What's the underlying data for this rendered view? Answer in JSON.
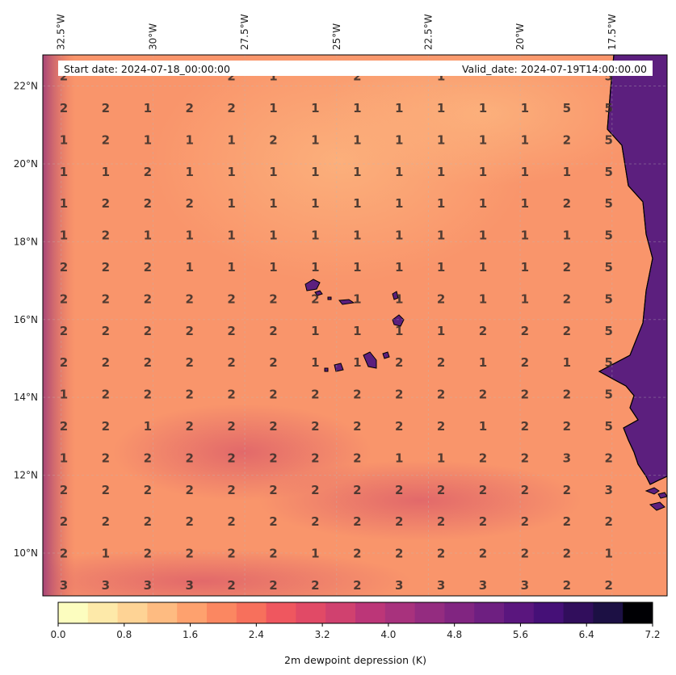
{
  "map": {
    "start_date_text": "Start date: 2024-07-18_00:00:00",
    "valid_date_text": "Valid_date: 2024-07-19T14:00:00.00",
    "lon_range": [
      -33.0,
      -16.0
    ],
    "lat_range": [
      8.9,
      22.8
    ],
    "lon_ticks": [
      {
        "value": -32.5,
        "label": "32.5°W"
      },
      {
        "value": -30.0,
        "label": "30°W"
      },
      {
        "value": -27.5,
        "label": "27.5°W"
      },
      {
        "value": -25.0,
        "label": "25°W"
      },
      {
        "value": -22.5,
        "label": "22.5°W"
      },
      {
        "value": -20.0,
        "label": "20°W"
      },
      {
        "value": -17.5,
        "label": "17.5°W"
      }
    ],
    "lat_ticks": [
      {
        "value": 22,
        "label": "22°N"
      },
      {
        "value": 20,
        "label": "20°N"
      },
      {
        "value": 18,
        "label": "18°N"
      },
      {
        "value": 16,
        "label": "16°N"
      },
      {
        "value": 14,
        "label": "14°N"
      },
      {
        "value": 12,
        "label": "12°N"
      },
      {
        "value": 10,
        "label": "10°N"
      }
    ],
    "grid_labels": [
      [
        "2",
        "2",
        "1",
        "2",
        "2",
        "1",
        "1",
        "1",
        "1",
        "1",
        "1",
        "1",
        "5",
        "5"
      ],
      [
        "1",
        "2",
        "1",
        "1",
        "1",
        "2",
        "1",
        "1",
        "1",
        "1",
        "1",
        "1",
        "2",
        "5"
      ],
      [
        "1",
        "1",
        "2",
        "1",
        "1",
        "1",
        "1",
        "1",
        "1",
        "1",
        "1",
        "1",
        "1",
        "5"
      ],
      [
        "1",
        "2",
        "2",
        "2",
        "1",
        "1",
        "1",
        "1",
        "1",
        "1",
        "1",
        "1",
        "2",
        "5"
      ],
      [
        "1",
        "2",
        "1",
        "1",
        "1",
        "1",
        "1",
        "1",
        "1",
        "1",
        "1",
        "1",
        "1",
        "5"
      ],
      [
        "2",
        "2",
        "2",
        "1",
        "1",
        "1",
        "1",
        "1",
        "1",
        "1",
        "1",
        "1",
        "2",
        "5"
      ],
      [
        "2",
        "2",
        "2",
        "2",
        "2",
        "2",
        "2",
        "1",
        "1",
        "2",
        "1",
        "1",
        "2",
        "5"
      ],
      [
        "2",
        "2",
        "2",
        "2",
        "2",
        "2",
        "1",
        "1",
        "1",
        "1",
        "2",
        "2",
        "2",
        "5"
      ],
      [
        "2",
        "2",
        "2",
        "2",
        "2",
        "2",
        "1",
        "1",
        "2",
        "2",
        "1",
        "2",
        "1",
        "5"
      ],
      [
        "1",
        "2",
        "2",
        "2",
        "2",
        "2",
        "2",
        "2",
        "2",
        "2",
        "2",
        "2",
        "2",
        "5"
      ],
      [
        "2",
        "2",
        "1",
        "2",
        "2",
        "2",
        "2",
        "2",
        "2",
        "2",
        "1",
        "2",
        "2",
        "5"
      ],
      [
        "1",
        "2",
        "2",
        "2",
        "2",
        "2",
        "2",
        "2",
        "1",
        "1",
        "2",
        "2",
        "3",
        "2"
      ],
      [
        "2",
        "2",
        "2",
        "2",
        "2",
        "2",
        "2",
        "2",
        "2",
        "2",
        "2",
        "2",
        "2",
        "3"
      ],
      [
        "2",
        "2",
        "2",
        "2",
        "2",
        "2",
        "2",
        "2",
        "2",
        "2",
        "2",
        "2",
        "2",
        "2"
      ],
      [
        "2",
        "1",
        "2",
        "2",
        "2",
        "2",
        "1",
        "2",
        "2",
        "2",
        "2",
        "2",
        "2",
        "1"
      ],
      [
        "3",
        "3",
        "3",
        "3",
        "2",
        "2",
        "2",
        "2",
        "3",
        "3",
        "3",
        "3",
        "2",
        "2"
      ]
    ],
    "top_row_partial": [
      "2",
      "",
      "",
      "",
      "2",
      "1",
      "",
      "2",
      "",
      "1",
      "",
      "",
      "",
      "5"
    ]
  },
  "colorbar": {
    "label": "2m dewpoint depression (K)",
    "ticks": [
      "0.0",
      "0.8",
      "1.6",
      "2.4",
      "3.2",
      "4.0",
      "4.8",
      "5.6",
      "6.4",
      "7.2"
    ],
    "colors": [
      "#fcfdbf",
      "#fde9a9",
      "#fed395",
      "#febb81",
      "#fea16e",
      "#fb8761",
      "#f7705c",
      "#ef575f",
      "#e14a66",
      "#d0416f",
      "#bc3678",
      "#a8327d",
      "#942c80",
      "#812581",
      "#6e1f81",
      "#5a167e",
      "#451077",
      "#310e5c",
      "#1c1044",
      "#000004"
    ]
  },
  "colors": {
    "ocean_base": "#f9956b",
    "land": "#5c1f7e",
    "coastline": "#000000"
  }
}
